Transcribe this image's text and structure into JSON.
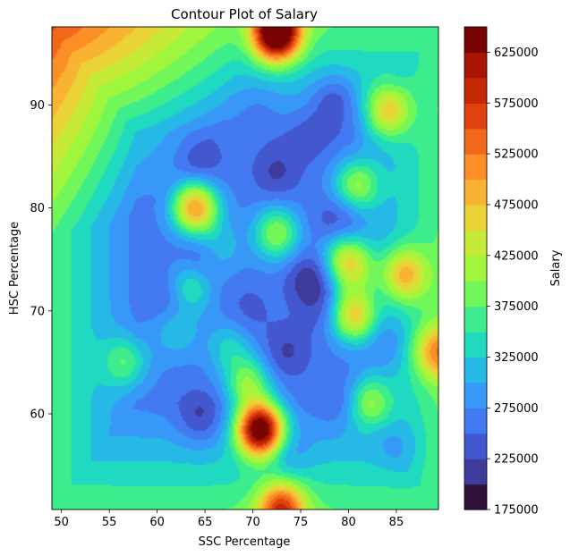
{
  "chart_data": {
    "type": "contourf",
    "title": "Contour Plot of Salary",
    "xlabel": "SSC Percentage",
    "ylabel": "HSC Percentage",
    "xlim": [
      49,
      89.4
    ],
    "ylim": [
      50.7,
      97.6
    ],
    "x_ticks": [
      50,
      55,
      60,
      65,
      70,
      75,
      80,
      85
    ],
    "y_ticks": [
      60,
      70,
      80,
      90
    ],
    "colorbar": {
      "label": "Salary",
      "range": [
        175000,
        650000
      ],
      "levels": [
        175000,
        200000,
        225000,
        250000,
        275000,
        300000,
        325000,
        350000,
        375000,
        400000,
        425000,
        450000,
        475000,
        500000,
        525000,
        550000,
        575000,
        600000,
        625000,
        650000
      ],
      "tick_values": [
        175000,
        225000,
        275000,
        325000,
        375000,
        425000,
        475000,
        525000,
        575000,
        625000
      ],
      "tick_labels": [
        "175000",
        "225000",
        "275000",
        "325000",
        "375000",
        "425000",
        "475000",
        "525000",
        "575000",
        "625000"
      ],
      "colormap": "turbo"
    },
    "background_salary": 265000,
    "peaks": [
      {
        "x": 70.8,
        "y": 58.5,
        "salary": 650000
      },
      {
        "x": 72.5,
        "y": 97.0,
        "salary": 650000
      },
      {
        "x": 64.0,
        "y": 80.0,
        "salary": 500000
      },
      {
        "x": 73.0,
        "y": 50.8,
        "salary": 480000
      },
      {
        "x": 80.5,
        "y": 69.5,
        "salary": 460000
      },
      {
        "x": 80.8,
        "y": 82.2,
        "salary": 400000
      },
      {
        "x": 84.0,
        "y": 89.5,
        "salary": 420000
      },
      {
        "x": 85.8,
        "y": 73.5,
        "salary": 420000
      },
      {
        "x": 89.4,
        "y": 66.0,
        "salary": 420000
      },
      {
        "x": 72.5,
        "y": 77.5,
        "salary": 400000
      },
      {
        "x": 63.2,
        "y": 72.2,
        "salary": 390000
      },
      {
        "x": 69.5,
        "y": 63.0,
        "salary": 390000
      },
      {
        "x": 82.0,
        "y": 61.0,
        "salary": 390000
      },
      {
        "x": 79.5,
        "y": 75.5,
        "salary": 370000
      },
      {
        "x": 56.8,
        "y": 65.0,
        "salary": 360000
      },
      {
        "x": 80.5,
        "y": 74.0,
        "salary": 380000
      },
      {
        "x": 67.5,
        "y": 66.5,
        "salary": 330000
      },
      {
        "x": 62.0,
        "y": 68.0,
        "salary": 320000
      },
      {
        "x": 66.5,
        "y": 76.0,
        "salary": 320000
      }
    ],
    "troughs": [
      {
        "x": 62.0,
        "y": 71.5,
        "salary": 200000
      },
      {
        "x": 76.0,
        "y": 73.0,
        "salary": 200000
      },
      {
        "x": 78.5,
        "y": 90.5,
        "salary": 205000
      },
      {
        "x": 72.5,
        "y": 83.5,
        "salary": 220000
      },
      {
        "x": 64.5,
        "y": 75.0,
        "salary": 220000
      },
      {
        "x": 64.5,
        "y": 84.5,
        "salary": 225000
      },
      {
        "x": 73.5,
        "y": 66.0,
        "salary": 220000
      },
      {
        "x": 64.5,
        "y": 59.5,
        "salary": 210000
      },
      {
        "x": 84.0,
        "y": 67.0,
        "salary": 230000
      },
      {
        "x": 73.5,
        "y": 56.0,
        "salary": 225000
      },
      {
        "x": 79.0,
        "y": 78.5,
        "salary": 215000
      },
      {
        "x": 77.5,
        "y": 70.0,
        "salary": 235000
      },
      {
        "x": 70.5,
        "y": 90.0,
        "salary": 245000
      },
      {
        "x": 79.5,
        "y": 61.0,
        "salary": 235000
      },
      {
        "x": 85.5,
        "y": 57.0,
        "salary": 235000
      },
      {
        "x": 69.5,
        "y": 70.0,
        "salary": 240000
      },
      {
        "x": 76.0,
        "y": 87.0,
        "salary": 235000
      }
    ]
  }
}
